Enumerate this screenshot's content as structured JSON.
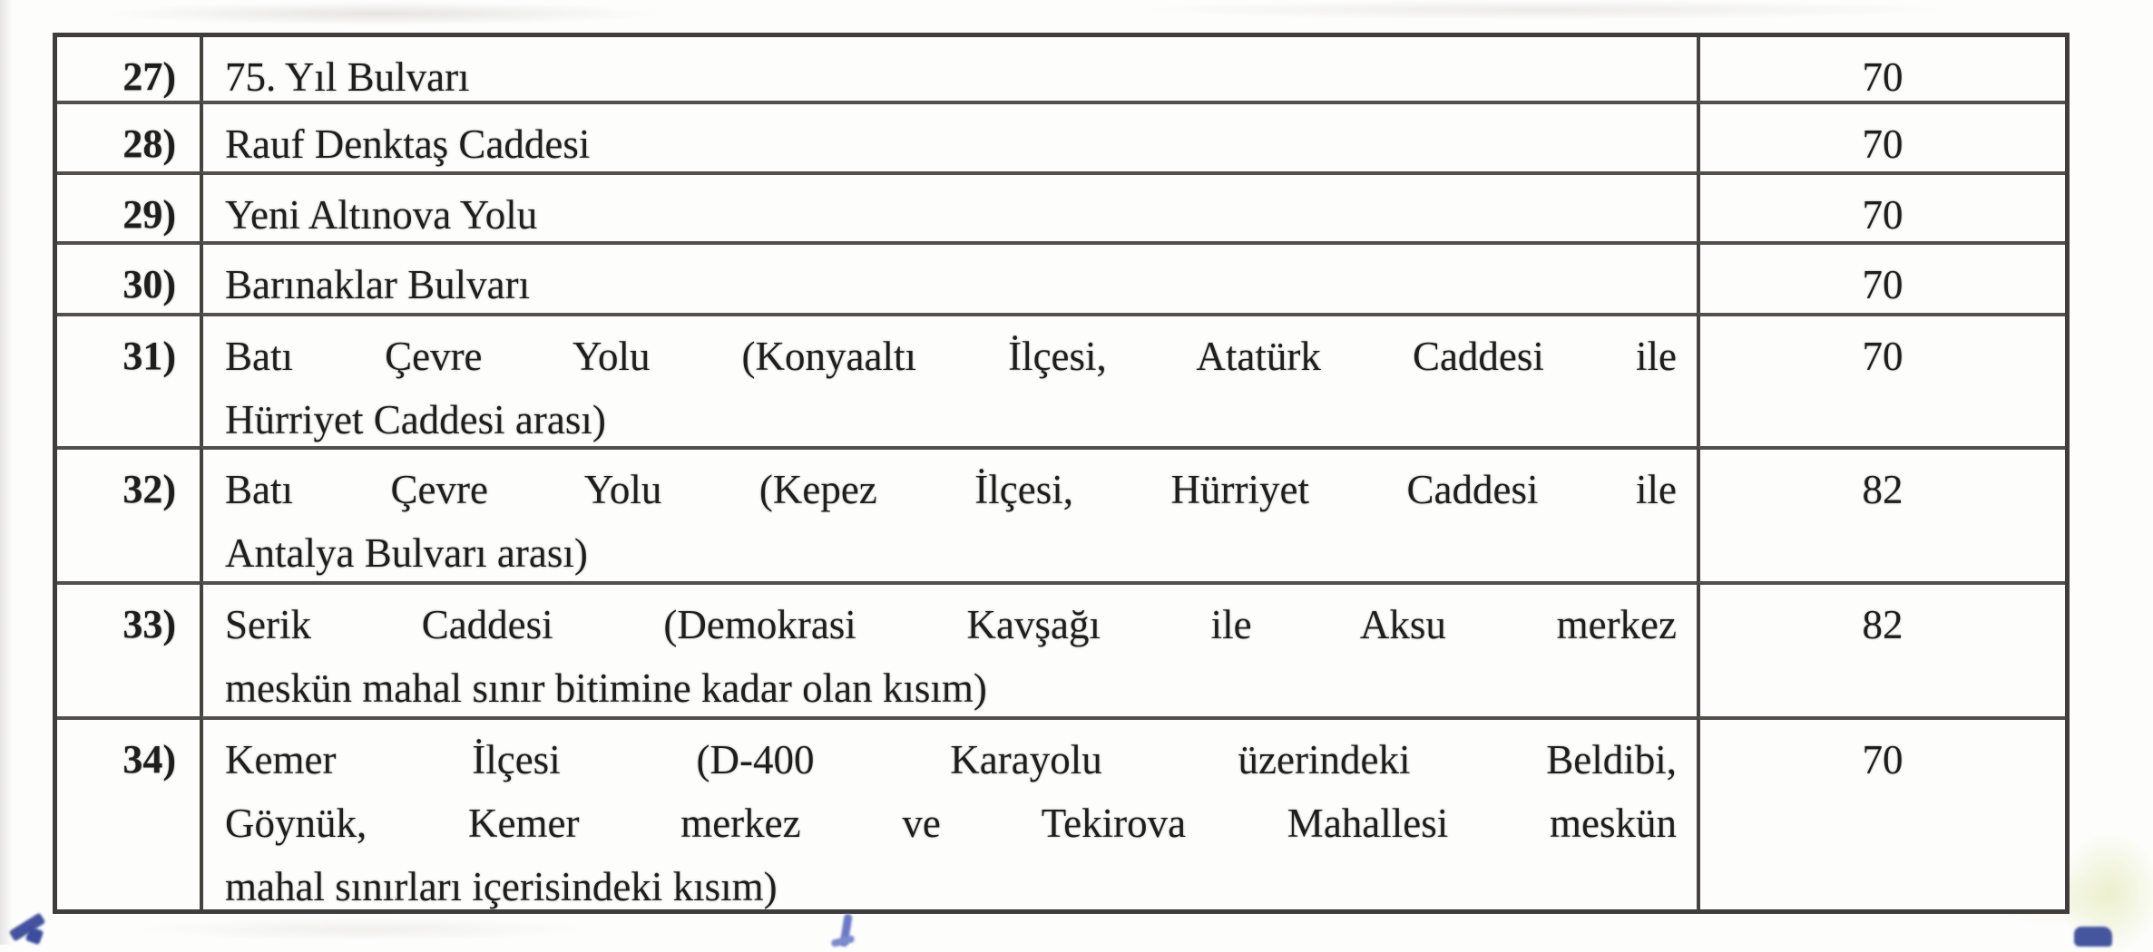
{
  "table": {
    "rows": [
      {
        "num": "27)",
        "value": "70",
        "lines": [
          "75. Yıl Bulvarı"
        ]
      },
      {
        "num": "28)",
        "value": "70",
        "lines": [
          "Rauf Denktaş Caddesi"
        ]
      },
      {
        "num": "29)",
        "value": "70",
        "lines": [
          "Yeni Altınova Yolu"
        ]
      },
      {
        "num": "30)",
        "value": "70",
        "lines": [
          "Barınaklar Bulvarı"
        ]
      },
      {
        "num": "31)",
        "value": "70",
        "lines": [
          "Batı Çevre Yolu (Konyaaltı İlçesi, Atatürk Caddesi ile",
          "Hürriyet Caddesi arası)"
        ]
      },
      {
        "num": "32)",
        "value": "82",
        "lines": [
          "Batı Çevre Yolu (Kepez İlçesi, Hürriyet Caddesi ile",
          "Antalya Bulvarı arası)"
        ]
      },
      {
        "num": "33)",
        "value": "82",
        "lines": [
          "Serik Caddesi (Demokrasi Kavşağı ile Aksu merkez",
          "meskün mahal sınır bitimine kadar olan kısım)"
        ]
      },
      {
        "num": "34)",
        "value": "70",
        "lines": [
          "Kemer İlçesi (D-400 Karayolu üzerindeki Beldibi,",
          "Göynük, Kemer merkez ve Tekirova Mahallesi meskün",
          "mahal sınırları içerisindeki kısım)"
        ]
      }
    ]
  }
}
